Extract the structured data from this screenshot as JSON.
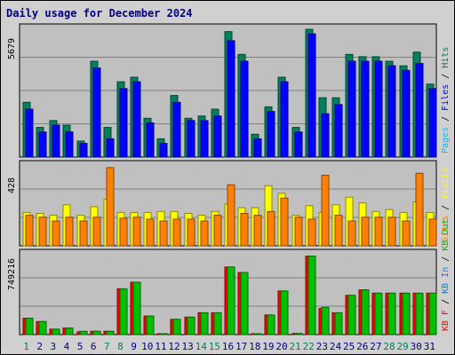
{
  "chart_data": {
    "type": "bar",
    "title": "Daily usage for December 2024",
    "colors": {
      "background": "#d0d0d0",
      "plot": "#c0c0c0",
      "grid": "#808080",
      "hits": "#00805c",
      "files": "#0000ff",
      "pages": "#00c0ff",
      "sites": "#ff8000",
      "visits": "#ffff00",
      "kbin": "#0080ff",
      "kbout": "#00c000",
      "kbf": "#ff0000",
      "weekday_label": "#000080",
      "weekend_label": "#00805c"
    },
    "categories": [
      "1",
      "2",
      "3",
      "4",
      "5",
      "6",
      "7",
      "8",
      "9",
      "10",
      "11",
      "12",
      "13",
      "14",
      "15",
      "16",
      "17",
      "18",
      "19",
      "20",
      "21",
      "22",
      "23",
      "24",
      "25",
      "26",
      "27",
      "28",
      "29",
      "30",
      "31"
    ],
    "weekend_days": [
      1,
      7,
      8,
      14,
      15,
      21,
      22,
      28,
      29
    ],
    "panels": [
      {
        "name": "hits-files-pages",
        "ymax_label": "5679",
        "ymax": 5679,
        "legend": [
          {
            "text": "Pages",
            "color": "#00c0ff"
          },
          {
            "text": " / ",
            "color": "#000000"
          },
          {
            "text": "Files",
            "color": "#0000ff"
          },
          {
            "text": " / ",
            "color": "#000000"
          },
          {
            "text": "Hits",
            "color": "#00805c"
          }
        ],
        "series": [
          {
            "name": "Hits",
            "color": "#00805c",
            "values": [
              2400,
              1300,
              1600,
              1400,
              700,
              4200,
              1300,
              3300,
              3500,
              1700,
              800,
              2700,
              1700,
              1800,
              2100,
              5500,
              4500,
              1000,
              2200,
              3500,
              1300,
              5600,
              2600,
              2600,
              4500,
              4400,
              4400,
              4200,
              4000,
              4600,
              3200
            ]
          },
          {
            "name": "Files",
            "color": "#0000ff",
            "values": [
              2100,
              1100,
              1400,
              1100,
              600,
              3900,
              800,
              3000,
              3300,
              1500,
              600,
              2400,
              1600,
              1600,
              1800,
              5100,
              4200,
              800,
              2000,
              3300,
              1100,
              5400,
              1900,
              2300,
              4200,
              4200,
              4200,
              4000,
              3800,
              4100,
              3000
            ]
          }
        ]
      },
      {
        "name": "visits-sites",
        "ymax_label": "428",
        "ymax": 428,
        "legend": [
          {
            "text": "Sites",
            "color": "#ff8000"
          },
          {
            "text": " / ",
            "color": "#000000"
          },
          {
            "text": "Visits",
            "color": "#ffff00"
          }
        ],
        "series": [
          {
            "name": "Visits",
            "color": "#ffff00",
            "values": [
              175,
              170,
              160,
              215,
              160,
              205,
              245,
              175,
              175,
              175,
              180,
              180,
              170,
              160,
              180,
              220,
              200,
              200,
              315,
              275,
              160,
              210,
              175,
              215,
              255,
              225,
              180,
              190,
              175,
              230,
              175
            ]
          },
          {
            "name": "Sites",
            "color": "#ff8000",
            "values": [
              160,
              150,
              130,
              150,
              130,
              150,
              410,
              145,
              150,
              140,
              130,
              140,
              140,
              130,
              160,
              320,
              170,
              160,
              180,
              250,
              150,
              140,
              370,
              160,
              130,
              150,
              150,
              150,
              130,
              380,
              140
            ]
          }
        ]
      },
      {
        "name": "kbytes",
        "ymax_label": "749216",
        "ymax": 749216,
        "legend": [
          {
            "text": "KB F",
            "color": "#ff0000"
          },
          {
            "text": " / ",
            "color": "#000000"
          },
          {
            "text": "KB In",
            "color": "#0080ff"
          },
          {
            "text": " / ",
            "color": "#000000"
          },
          {
            "text": "KB Out",
            "color": "#00c000"
          }
        ],
        "series": [
          {
            "name": "KB F",
            "color": "#ff0000",
            "values": [
              150000,
              120000,
              50000,
              60000,
              25000,
              30000,
              30000,
              420000,
              480000,
              170000,
              6000,
              140000,
              160000,
              200000,
              200000,
              620000,
              570000,
              6000,
              180000,
              400000,
              10000,
              720000,
              240000,
              200000,
              360000,
              410000,
              380000,
              380000,
              380000,
              380000,
              380000
            ]
          },
          {
            "name": "KB Out",
            "color": "#00c000",
            "values": [
              150000,
              120000,
              50000,
              60000,
              30000,
              30000,
              30000,
              420000,
              480000,
              170000,
              6000,
              140000,
              160000,
              200000,
              200000,
              620000,
              570000,
              6000,
              180000,
              400000,
              10000,
              720000,
              250000,
              200000,
              360000,
              410000,
              380000,
              380000,
              380000,
              380000,
              380000
            ]
          }
        ]
      }
    ]
  }
}
